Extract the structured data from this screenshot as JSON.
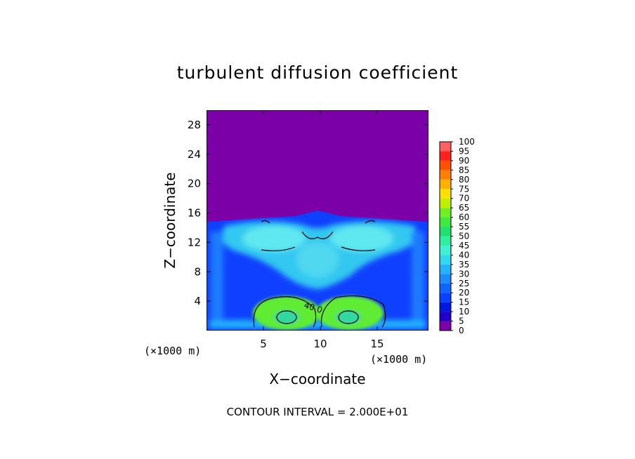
{
  "chart_data": {
    "type": "heatmap",
    "title": "turbulent diffusion coefficient",
    "xlabel": "X−coordinate",
    "ylabel": "Z−coordinate",
    "x_unit_label": "(×1000 m)",
    "y_unit_label": "(×1000 m)",
    "xlim": [
      0,
      19.5
    ],
    "ylim": [
      0,
      30
    ],
    "x_ticks": [
      5,
      10,
      15
    ],
    "y_ticks": [
      4,
      8,
      12,
      16,
      20,
      24,
      28
    ],
    "contour_interval_text": "CONTOUR INTERVAL = 2.000E+01",
    "contour_label": "40.0",
    "colorbar": {
      "levels": [
        0,
        5,
        10,
        15,
        20,
        25,
        30,
        35,
        40,
        45,
        50,
        55,
        60,
        65,
        70,
        75,
        80,
        85,
        90,
        95,
        100
      ],
      "colors": [
        "#7b00a8",
        "#2000c8",
        "#0018e0",
        "#0a40ff",
        "#1064ff",
        "#1a8cff",
        "#20b4ff",
        "#30d8f0",
        "#40f0d0",
        "#30f0a0",
        "#20e070",
        "#40e840",
        "#70f020",
        "#c0f000",
        "#ffe000",
        "#ffb000",
        "#ff8000",
        "#ff5000",
        "#ff2020",
        "#ff6060"
      ]
    },
    "background_value": 0,
    "turbulent_layer_top": 15,
    "features": [
      {
        "region": "upper layer",
        "z_range": [
          0,
          15
        ],
        "typical_value": 30
      },
      {
        "region": "left core",
        "center": [
          7.5,
          2.2
        ],
        "value": 50
      },
      {
        "region": "right core",
        "center": [
          12.5,
          2.2
        ],
        "value": 50
      }
    ]
  }
}
